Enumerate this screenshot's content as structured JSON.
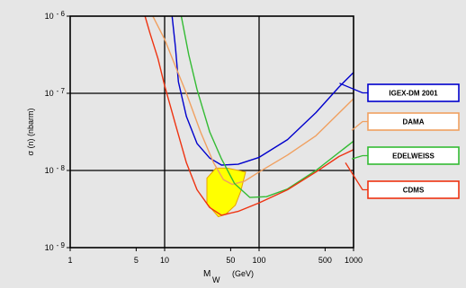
{
  "chart_data": {
    "type": "line",
    "title": "",
    "xlabel_main": "M",
    "xlabel_sub": "W",
    "xlabel_unit": "(GeV)",
    "ylabel": "σ (n) (nbarm)",
    "xscale": "log",
    "yscale": "log",
    "xlim": [
      1,
      1000
    ],
    "ylim_exp": [
      -9,
      -6
    ],
    "x_ticks": [
      {
        "v": 1,
        "label": "1"
      },
      {
        "v": 5,
        "label": "5"
      },
      {
        "v": 10,
        "label": "10"
      },
      {
        "v": 50,
        "label": "50"
      },
      {
        "v": 100,
        "label": "100"
      },
      {
        "v": 500,
        "label": "500"
      },
      {
        "v": 1000,
        "label": "1000"
      }
    ],
    "y_ticks": [
      {
        "e": -6,
        "base": "10",
        "exp": "- 6"
      },
      {
        "e": -7,
        "base": "10",
        "exp": "- 7"
      },
      {
        "e": -8,
        "base": "10",
        "exp": "- 8"
      },
      {
        "e": -9,
        "base": "10",
        "exp": "- 9"
      }
    ],
    "grid_x": [
      10,
      100
    ],
    "grid_y": [
      -7,
      -8
    ],
    "region": {
      "color": "#ffff00",
      "edge": "#e8a000",
      "points": [
        [
          28,
          -8.1
        ],
        [
          35,
          -7.97
        ],
        [
          46,
          -7.97
        ],
        [
          72,
          -8.02
        ],
        [
          64,
          -8.27
        ],
        [
          56,
          -8.45
        ],
        [
          44,
          -8.57
        ],
        [
          37,
          -8.6
        ],
        [
          28,
          -8.43
        ]
      ]
    },
    "series": [
      {
        "name": "IGEX-DM 2001",
        "color": "#0000cc",
        "points": [
          [
            12,
            -6.0
          ],
          [
            13,
            -6.4
          ],
          [
            14,
            -6.85
          ],
          [
            17,
            -7.3
          ],
          [
            22,
            -7.65
          ],
          [
            30,
            -7.84
          ],
          [
            40,
            -7.93
          ],
          [
            60,
            -7.92
          ],
          [
            100,
            -7.83
          ],
          [
            200,
            -7.6
          ],
          [
            400,
            -7.25
          ],
          [
            700,
            -6.92
          ],
          [
            1000,
            -6.73
          ]
        ]
      },
      {
        "name": "DAMA",
        "color": "#f0a060",
        "points": [
          [
            7.5,
            -6.0
          ],
          [
            10,
            -6.3
          ],
          [
            13,
            -6.65
          ],
          [
            17,
            -7.0
          ],
          [
            24,
            -7.5
          ],
          [
            33,
            -7.9
          ],
          [
            42,
            -8.12
          ],
          [
            52,
            -8.18
          ],
          [
            70,
            -8.14
          ],
          [
            100,
            -8.02
          ],
          [
            200,
            -7.8
          ],
          [
            400,
            -7.55
          ],
          [
            1000,
            -7.07
          ]
        ]
      },
      {
        "name": "EDELWEISS",
        "color": "#33bb33",
        "points": [
          [
            15,
            -6.0
          ],
          [
            18,
            -6.5
          ],
          [
            22,
            -6.95
          ],
          [
            30,
            -7.5
          ],
          [
            40,
            -7.85
          ],
          [
            55,
            -8.17
          ],
          [
            80,
            -8.35
          ],
          [
            120,
            -8.34
          ],
          [
            200,
            -8.24
          ],
          [
            400,
            -8.0
          ],
          [
            1000,
            -7.62
          ]
        ]
      },
      {
        "name": "CDMS",
        "color": "#ee3311",
        "points": [
          [
            6.2,
            -6.0
          ],
          [
            7,
            -6.22
          ],
          [
            8.5,
            -6.55
          ],
          [
            10,
            -6.9
          ],
          [
            13,
            -7.4
          ],
          [
            17,
            -7.9
          ],
          [
            22,
            -8.25
          ],
          [
            30,
            -8.48
          ],
          [
            40,
            -8.58
          ],
          [
            60,
            -8.53
          ],
          [
            100,
            -8.42
          ],
          [
            200,
            -8.25
          ],
          [
            400,
            -8.02
          ],
          [
            700,
            -7.82
          ],
          [
            1000,
            -7.73
          ]
        ]
      }
    ],
    "legend_items": [
      {
        "name": "IGEX-DM 2001",
        "border": "#0000cc",
        "anchor": [
          710,
          -6.87
        ]
      },
      {
        "name": "DAMA",
        "border": "#f0a060",
        "anchor": [
          960,
          -7.48
        ]
      },
      {
        "name": "EDELWEISS",
        "border": "#33bb33",
        "anchor": [
          960,
          -7.85
        ]
      },
      {
        "name": "CDMS",
        "border": "#ee3311",
        "anchor": [
          820,
          -7.9
        ]
      }
    ]
  }
}
